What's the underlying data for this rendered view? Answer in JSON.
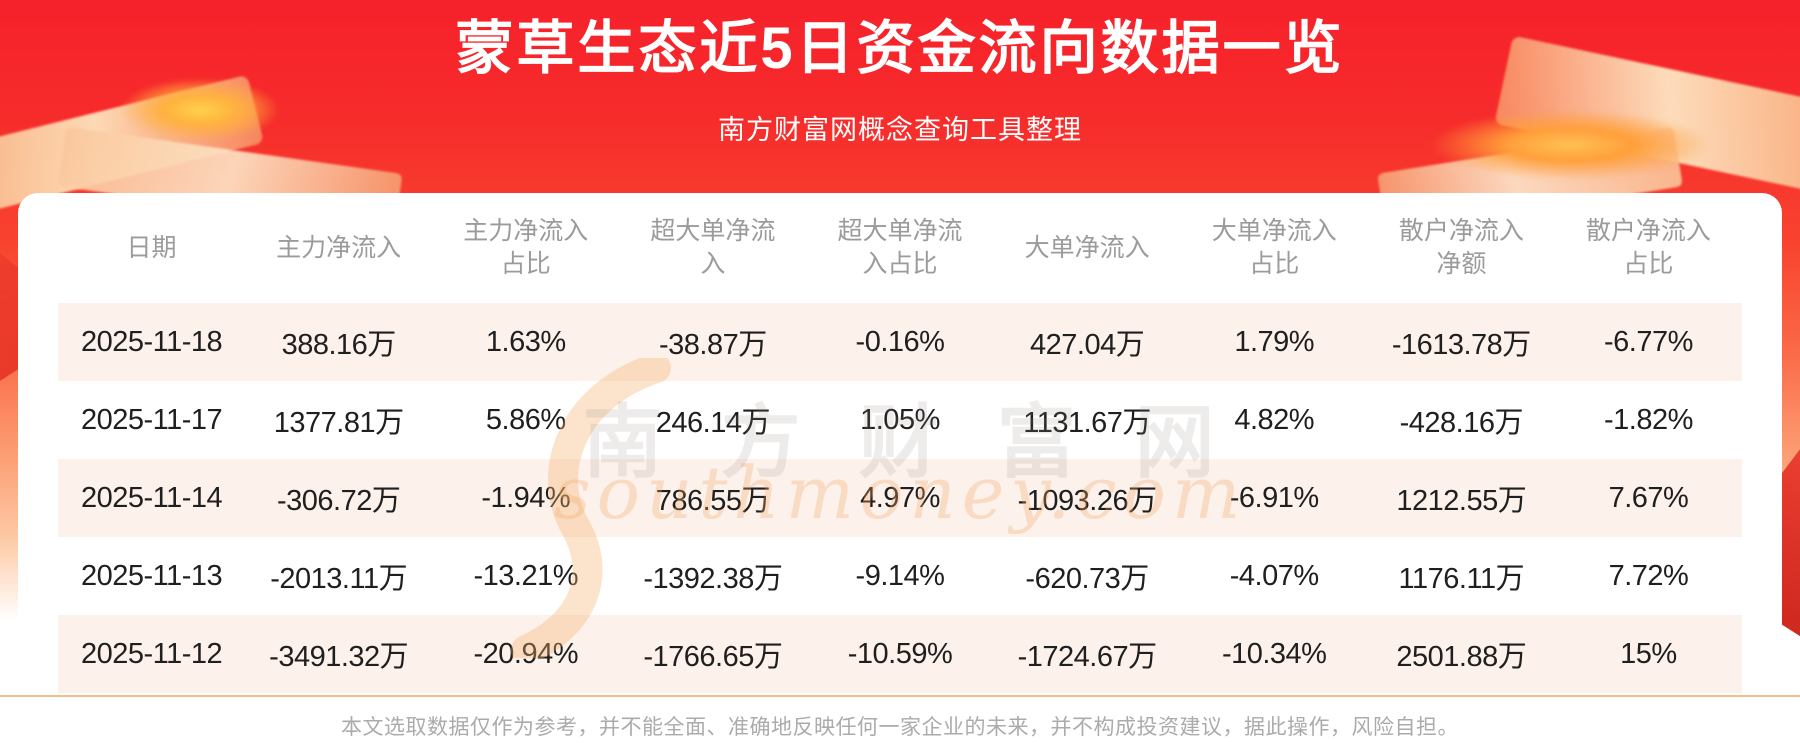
{
  "header": {
    "title": "蒙草生态近5日资金流向数据一览",
    "subtitle": "南方财富网概念查询工具整理"
  },
  "table": {
    "columns_display": [
      "日期",
      "主力净流入",
      "主力净流入\n占比",
      "超大单净流\n入",
      "超大单净流\n入占比",
      "大单净流入",
      "大单净流入\n占比",
      "散户净流入\n净额",
      "散户净流入\n占比"
    ]
  },
  "chart_data": {
    "type": "table",
    "title": "蒙草生态近5日资金流向数据一览",
    "columns": [
      "日期",
      "主力净流入",
      "主力净流入占比",
      "超大单净流入",
      "超大单净流入占比",
      "大单净流入",
      "大单净流入占比",
      "散户净流入净额",
      "散户净流入占比"
    ],
    "rows": [
      [
        "2025-11-18",
        "388.16万",
        "1.63%",
        "-38.87万",
        "-0.16%",
        "427.04万",
        "1.79%",
        "-1613.78万",
        "-6.77%"
      ],
      [
        "2025-11-17",
        "1377.81万",
        "5.86%",
        "246.14万",
        "1.05%",
        "1131.67万",
        "4.82%",
        "-428.16万",
        "-1.82%"
      ],
      [
        "2025-11-14",
        "-306.72万",
        "-1.94%",
        "786.55万",
        "4.97%",
        "-1093.26万",
        "-6.91%",
        "1212.55万",
        "7.67%"
      ],
      [
        "2025-11-13",
        "-2013.11万",
        "-13.21%",
        "-1392.38万",
        "-9.14%",
        "-620.73万",
        "-4.07%",
        "1176.11万",
        "7.72%"
      ],
      [
        "2025-11-12",
        "-3491.32万",
        "-20.94%",
        "-1766.65万",
        "-10.59%",
        "-1724.67万",
        "-10.34%",
        "2501.88万",
        "15%"
      ]
    ]
  },
  "watermark": {
    "cn": "南方财富网",
    "en": "southmoney.com"
  },
  "footer": {
    "disclaimer": "本文选取数据仅作为参考，并不能全面、准确地反映任何一家企业的未来，并不构成投资建议，据此操作，风险自担。"
  },
  "colors": {
    "banner_red_top": "#f6212b",
    "banner_fade": "#fdc9a4",
    "row_alt_bg": "#fcf1eb",
    "header_text": "#9b9b9b",
    "cell_text": "#1f1f1f",
    "divider": "#f0bf8a",
    "disclaimer_text": "#ababab",
    "title_text": "#ffffff"
  }
}
